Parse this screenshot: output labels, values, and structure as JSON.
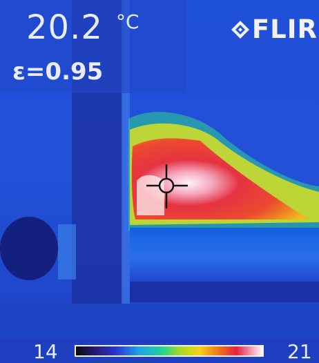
{
  "readout": {
    "temperature": "20.2",
    "unit": "°C",
    "emissivity": "ε=0.95"
  },
  "brand": {
    "name": "FLIR",
    "icon": "flir-diamond-logo"
  },
  "scale": {
    "min": "14",
    "max": "21"
  },
  "colors": {
    "background": "#1a3fc4",
    "text": "#e9ecff"
  }
}
